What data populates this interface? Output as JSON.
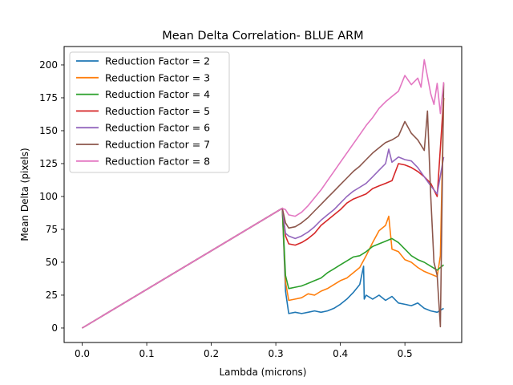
{
  "chart_data": {
    "type": "line",
    "title": "Mean Delta Correlation- BLUE ARM",
    "xlabel": "Lambda (microns)",
    "ylabel": "Mean Delta (pixels)",
    "xlim": [
      -0.028,
      0.588
    ],
    "ylim": [
      -11,
      214
    ],
    "xticks": [
      0.0,
      0.1,
      0.2,
      0.3,
      0.4,
      0.5
    ],
    "xtick_labels": [
      "0.0",
      "0.1",
      "0.2",
      "0.3",
      "0.4",
      "0.5"
    ],
    "yticks": [
      0,
      25,
      50,
      75,
      100,
      125,
      150,
      175,
      200
    ],
    "ytick_labels": [
      "0",
      "25",
      "50",
      "75",
      "100",
      "125",
      "150",
      "175",
      "200"
    ],
    "grid": false,
    "legend_position": "top-left",
    "series": [
      {
        "name": "Reduction Factor = 2",
        "color": "#1f77b4",
        "x": [
          0.0,
          0.31,
          0.315,
          0.32,
          0.33,
          0.34,
          0.35,
          0.36,
          0.37,
          0.38,
          0.39,
          0.4,
          0.41,
          0.42,
          0.43,
          0.436,
          0.437,
          0.44,
          0.45,
          0.46,
          0.47,
          0.48,
          0.49,
          0.5,
          0.51,
          0.52,
          0.53,
          0.54,
          0.55,
          0.56
        ],
        "y": [
          0,
          91,
          28,
          11,
          12,
          11,
          12,
          13,
          12,
          13,
          15,
          18,
          22,
          27,
          33,
          47,
          22,
          25,
          22,
          25,
          21,
          24,
          19,
          18,
          17,
          19,
          15,
          13,
          12,
          15
        ]
      },
      {
        "name": "Reduction Factor = 3",
        "color": "#ff7f0e",
        "x": [
          0.0,
          0.31,
          0.315,
          0.32,
          0.33,
          0.34,
          0.35,
          0.36,
          0.37,
          0.38,
          0.39,
          0.4,
          0.41,
          0.42,
          0.43,
          0.44,
          0.45,
          0.46,
          0.47,
          0.475,
          0.48,
          0.49,
          0.5,
          0.51,
          0.52,
          0.53,
          0.54,
          0.55,
          0.555,
          0.56
        ],
        "y": [
          0,
          91,
          35,
          21,
          22,
          23,
          26,
          25,
          28,
          30,
          33,
          36,
          38,
          42,
          46,
          55,
          65,
          74,
          78,
          85,
          60,
          58,
          52,
          50,
          46,
          43,
          41,
          39,
          55,
          175
        ]
      },
      {
        "name": "Reduction Factor = 4",
        "color": "#2ca02c",
        "x": [
          0.0,
          0.31,
          0.315,
          0.32,
          0.33,
          0.34,
          0.35,
          0.36,
          0.37,
          0.38,
          0.39,
          0.4,
          0.41,
          0.42,
          0.43,
          0.44,
          0.45,
          0.46,
          0.47,
          0.48,
          0.49,
          0.5,
          0.51,
          0.52,
          0.53,
          0.54,
          0.55,
          0.56
        ],
        "y": [
          0,
          91,
          40,
          30,
          31,
          32,
          34,
          36,
          38,
          42,
          45,
          48,
          51,
          54,
          55,
          58,
          62,
          64,
          66,
          68,
          65,
          60,
          55,
          52,
          50,
          47,
          44,
          48
        ]
      },
      {
        "name": "Reduction Factor = 5",
        "color": "#d62728",
        "x": [
          0.0,
          0.31,
          0.315,
          0.32,
          0.33,
          0.34,
          0.35,
          0.36,
          0.37,
          0.38,
          0.39,
          0.4,
          0.41,
          0.42,
          0.43,
          0.44,
          0.45,
          0.46,
          0.47,
          0.48,
          0.49,
          0.5,
          0.51,
          0.52,
          0.53,
          0.54,
          0.55,
          0.56
        ],
        "y": [
          0,
          91,
          70,
          64,
          63,
          65,
          68,
          72,
          78,
          82,
          86,
          90,
          95,
          98,
          100,
          102,
          106,
          108,
          110,
          112,
          125,
          124,
          122,
          119,
          115,
          110,
          100,
          175
        ]
      },
      {
        "name": "Reduction Factor = 6",
        "color": "#9467bd",
        "x": [
          0.0,
          0.31,
          0.315,
          0.32,
          0.33,
          0.34,
          0.35,
          0.36,
          0.37,
          0.38,
          0.39,
          0.4,
          0.41,
          0.42,
          0.43,
          0.44,
          0.45,
          0.46,
          0.47,
          0.475,
          0.48,
          0.49,
          0.5,
          0.51,
          0.52,
          0.53,
          0.54,
          0.55,
          0.56
        ],
        "y": [
          0,
          91,
          72,
          70,
          68,
          70,
          73,
          77,
          82,
          86,
          90,
          95,
          100,
          104,
          107,
          110,
          115,
          120,
          125,
          136,
          126,
          130,
          128,
          127,
          122,
          115,
          108,
          102,
          130
        ]
      },
      {
        "name": "Reduction Factor = 7",
        "color": "#8c564b",
        "x": [
          0.0,
          0.31,
          0.315,
          0.32,
          0.33,
          0.34,
          0.35,
          0.36,
          0.37,
          0.38,
          0.39,
          0.4,
          0.41,
          0.42,
          0.43,
          0.44,
          0.45,
          0.46,
          0.47,
          0.48,
          0.49,
          0.5,
          0.51,
          0.52,
          0.53,
          0.535,
          0.54,
          0.545,
          0.55,
          0.555,
          0.56
        ],
        "y": [
          0,
          91,
          80,
          76,
          77,
          80,
          84,
          89,
          94,
          99,
          104,
          109,
          114,
          119,
          123,
          128,
          133,
          137,
          141,
          143,
          146,
          157,
          148,
          143,
          135,
          165,
          100,
          50,
          40,
          1,
          186
        ]
      },
      {
        "name": "Reduction Factor = 8",
        "color": "#e377c2",
        "x": [
          0.0,
          0.31,
          0.315,
          0.32,
          0.33,
          0.34,
          0.35,
          0.36,
          0.37,
          0.38,
          0.39,
          0.4,
          0.41,
          0.42,
          0.43,
          0.44,
          0.45,
          0.46,
          0.47,
          0.48,
          0.49,
          0.5,
          0.51,
          0.52,
          0.525,
          0.53,
          0.54,
          0.545,
          0.55,
          0.555,
          0.56
        ],
        "y": [
          0,
          91,
          90,
          86,
          85,
          88,
          93,
          99,
          105,
          112,
          119,
          126,
          133,
          140,
          147,
          154,
          160,
          167,
          172,
          176,
          180,
          192,
          185,
          190,
          183,
          204,
          178,
          170,
          186,
          163,
          187
        ]
      }
    ]
  }
}
